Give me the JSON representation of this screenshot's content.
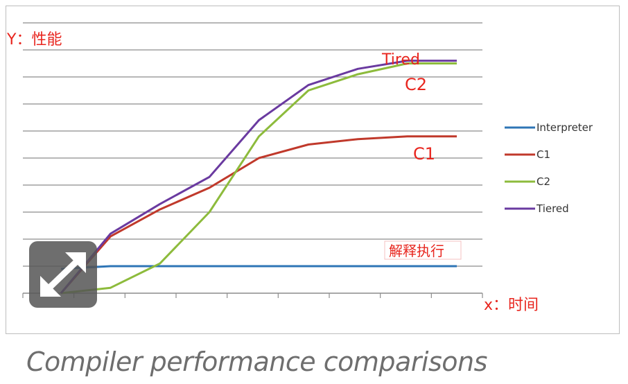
{
  "caption": "Compiler performance comparisons",
  "chart_data": {
    "type": "line",
    "x": [
      0,
      1,
      2,
      3,
      4,
      5,
      6,
      7,
      8
    ],
    "ylim": [
      0,
      10
    ],
    "grid": true,
    "legend_position": "right",
    "series": [
      {
        "name": "Interpreter",
        "color": "#2e75b6",
        "values": [
          0.9,
          1.0,
          1.0,
          1.0,
          1.0,
          1.0,
          1.0,
          1.0,
          1.0
        ]
      },
      {
        "name": "C1",
        "color": "#c0392b",
        "values": [
          0.0,
          2.1,
          3.1,
          3.9,
          5.0,
          5.5,
          5.7,
          5.8,
          5.8
        ]
      },
      {
        "name": "C2",
        "color": "#8dbb3c",
        "values": [
          0.0,
          0.2,
          1.1,
          3.0,
          5.8,
          7.5,
          8.1,
          8.5,
          8.5
        ]
      },
      {
        "name": "Tiered",
        "color": "#6a3aa0",
        "values": [
          0.0,
          2.2,
          3.3,
          4.3,
          6.4,
          7.7,
          8.3,
          8.6,
          8.6
        ]
      }
    ],
    "annotations": {
      "y_axis": "Y：性能",
      "x_axis": "x：时间",
      "tiered": "Tired",
      "c2": "C2",
      "c1": "C1",
      "interpreter": "解释执行"
    }
  }
}
